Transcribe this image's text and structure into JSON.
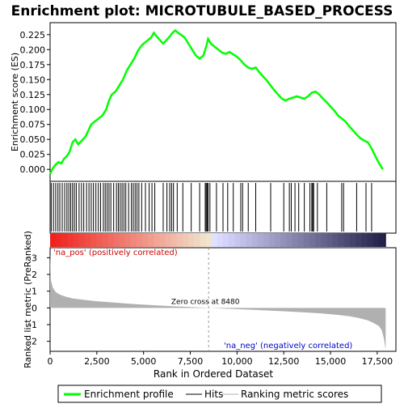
{
  "chart_data": {
    "type": "line",
    "title": "Enrichment plot: MICROTUBULE_BASED_PROCESS",
    "top_panel": {
      "ylabel": "Enrichment score (ES)",
      "ylim": [
        -0.02,
        0.245
      ],
      "y_ticks": [
        "0.000",
        "0.025",
        "0.050",
        "0.075",
        "0.100",
        "0.125",
        "0.150",
        "0.175",
        "0.200",
        "0.225"
      ],
      "y_tick_values": [
        0,
        0.025,
        0.05,
        0.075,
        0.1,
        0.125,
        0.15,
        0.175,
        0.2,
        0.225
      ],
      "series": [
        {
          "name": "Enrichment profile",
          "color": "#00ff00",
          "x": [
            0,
            150,
            300,
            450,
            600,
            750,
            900,
            1050,
            1200,
            1350,
            1500,
            1700,
            1900,
            2050,
            2200,
            2400,
            2600,
            2800,
            3000,
            3150,
            3300,
            3500,
            3700,
            3900,
            4100,
            4300,
            4500,
            4700,
            4850,
            5000,
            5200,
            5400,
            5550,
            5700,
            5900,
            6050,
            6200,
            6400,
            6550,
            6700,
            6850,
            7000,
            7200,
            7400,
            7600,
            7800,
            8000,
            8200,
            8350,
            8450,
            8600,
            8800,
            9000,
            9200,
            9400,
            9600,
            9800,
            10000,
            10200,
            10400,
            10600,
            10800,
            11000,
            11200,
            11400,
            11600,
            11800,
            12000,
            12200,
            12400,
            12600,
            12800,
            13000,
            13200,
            13400,
            13600,
            13800,
            14000,
            14200,
            14400,
            14600,
            14800,
            15000,
            15200,
            15400,
            15600,
            15800,
            16000,
            16200,
            16400,
            16600,
            16800,
            17000,
            17200,
            17400,
            17600,
            17800
          ],
          "y": [
            -0.008,
            0.002,
            0.008,
            0.012,
            0.01,
            0.018,
            0.022,
            0.03,
            0.045,
            0.05,
            0.042,
            0.048,
            0.055,
            0.065,
            0.075,
            0.08,
            0.085,
            0.09,
            0.1,
            0.115,
            0.125,
            0.13,
            0.14,
            0.15,
            0.165,
            0.175,
            0.185,
            0.198,
            0.205,
            0.21,
            0.215,
            0.22,
            0.228,
            0.222,
            0.215,
            0.21,
            0.215,
            0.222,
            0.228,
            0.232,
            0.228,
            0.225,
            0.22,
            0.21,
            0.2,
            0.19,
            0.185,
            0.19,
            0.205,
            0.218,
            0.21,
            0.205,
            0.2,
            0.195,
            0.193,
            0.196,
            0.192,
            0.188,
            0.182,
            0.175,
            0.17,
            0.168,
            0.17,
            0.162,
            0.155,
            0.148,
            0.14,
            0.132,
            0.125,
            0.118,
            0.115,
            0.118,
            0.12,
            0.122,
            0.12,
            0.118,
            0.122,
            0.128,
            0.13,
            0.125,
            0.118,
            0.112,
            0.105,
            0.098,
            0.09,
            0.085,
            0.08,
            0.072,
            0.065,
            0.058,
            0.052,
            0.048,
            0.045,
            0.035,
            0.022,
            0.01,
            0.0
          ]
        }
      ]
    },
    "hits": [
      60,
      180,
      300,
      420,
      520,
      650,
      780,
      900,
      1000,
      1100,
      1200,
      1300,
      1400,
      1550,
      1680,
      1800,
      1950,
      2080,
      2200,
      2320,
      2450,
      2580,
      2700,
      2850,
      2950,
      3050,
      3150,
      3250,
      3400,
      3550,
      3650,
      3750,
      3850,
      3950,
      4050,
      4200,
      4350,
      4450,
      4550,
      4650,
      4750,
      4900,
      5100,
      5300,
      5450,
      5600,
      6050,
      6250,
      6400,
      6500,
      6600,
      6800,
      7100,
      7550,
      8000,
      8300,
      8350,
      8400,
      8450,
      8550,
      8900,
      9250,
      9500,
      9800,
      10200,
      10300,
      10600,
      11000,
      11800,
      12500,
      12800,
      12900,
      13100,
      13300,
      13600,
      13900,
      14000,
      14050,
      14100,
      14300,
      14800,
      15600,
      15700,
      16400,
      16900,
      17200
    ],
    "bottom_panel": {
      "ylabel": "Ranked list metric (PreRanked)",
      "xlabel": "Rank in Ordered Dataset",
      "ylim": [
        -2.6,
        3.6
      ],
      "y_ticks": [
        "-2",
        "-1",
        "0",
        "1",
        "2",
        "3"
      ],
      "y_tick_values": [
        -2,
        -1,
        0,
        1,
        2,
        3
      ],
      "xlim": [
        0,
        18500
      ],
      "x_ticks": [
        "0",
        "2,500",
        "5,000",
        "7,500",
        "10,000",
        "12,500",
        "15,000",
        "17,500"
      ],
      "x_tick_values": [
        0,
        2500,
        5000,
        7500,
        10000,
        12500,
        15000,
        17500
      ],
      "metric_x": [
        0,
        50,
        150,
        300,
        500,
        800,
        1200,
        1800,
        2500,
        3500,
        4500,
        5500,
        6500,
        7500,
        8480,
        9500,
        10500,
        11500,
        12500,
        13500,
        14500,
        15500,
        16000,
        16500,
        17000,
        17300,
        17600,
        17750,
        17850,
        17950
      ],
      "metric_y": [
        3.2,
        1.6,
        1.2,
        0.95,
        0.8,
        0.68,
        0.57,
        0.48,
        0.4,
        0.31,
        0.23,
        0.16,
        0.1,
        0.05,
        0.0,
        -0.05,
        -0.1,
        -0.15,
        -0.2,
        -0.26,
        -0.33,
        -0.43,
        -0.5,
        -0.6,
        -0.75,
        -0.9,
        -1.1,
        -1.35,
        -1.8,
        -2.5
      ],
      "zero_cross_label": "Zero cross at 8480",
      "zero_cross": 8480,
      "pos_label": "'na_pos' (positively correlated)",
      "neg_label": "'na_neg' (negatively correlated)"
    },
    "legend": {
      "placement": "bottom",
      "items": [
        {
          "label": "Enrichment profile",
          "color": "#00ff00"
        },
        {
          "label": "Hits",
          "color": "#000000"
        },
        {
          "label": "Ranking metric scores",
          "color": "#b0b0b0"
        }
      ]
    },
    "colors": {
      "profile": "#00ff00",
      "metric_fill": "#b0b0b0",
      "pos_label": "#cc0000",
      "neg_label": "#0000cc",
      "zero_line": "#999999"
    }
  }
}
